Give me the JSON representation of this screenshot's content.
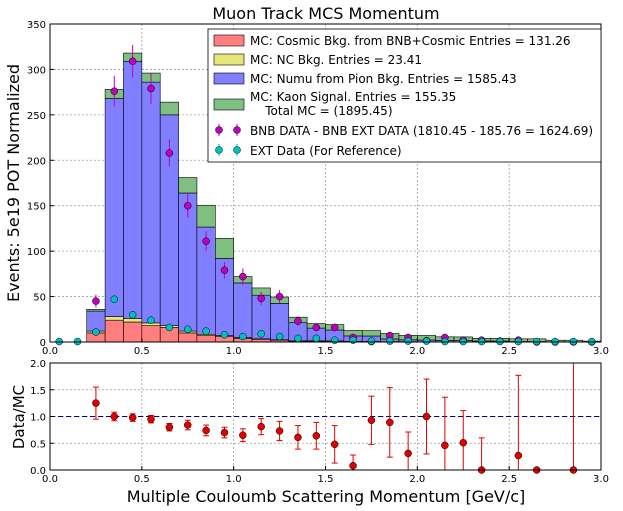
{
  "chart_data": [
    {
      "type": "bar",
      "stacked": true,
      "title": "Muon Track MCS Momentum",
      "ylabel": "Events: 5e19 POT Normalized",
      "xlim": [
        0,
        3
      ],
      "ylim": [
        0,
        350
      ],
      "xticks": [
        "0.0",
        "0.5",
        "1.0",
        "1.5",
        "2.0",
        "2.5",
        "3.0"
      ],
      "yticks": [
        "0",
        "50",
        "100",
        "150",
        "200",
        "250",
        "300",
        "350"
      ],
      "grid": true,
      "legend_position": "top-right",
      "bin_edges": [
        0,
        0.1,
        0.2,
        0.3,
        0.4,
        0.5,
        0.6,
        0.7,
        0.8,
        0.9,
        1.0,
        1.1,
        1.2,
        1.3,
        1.4,
        1.5,
        1.6,
        1.7,
        1.8,
        1.9,
        2.0,
        2.1,
        2.2,
        2.3,
        2.4,
        2.5,
        2.6,
        2.7,
        2.8,
        2.9,
        3.0
      ],
      "series": [
        {
          "name": "MC: Cosmic Bkg. from BNB+Cosmic Entries = 131.26",
          "color": "#ff7f7f",
          "values": [
            0,
            0,
            10,
            24,
            22,
            18,
            16,
            10,
            7,
            6,
            4,
            3,
            2,
            1,
            1,
            1,
            0.5,
            0.5,
            0.3,
            0.3,
            0.2,
            0.2,
            0.1,
            0.1,
            0.1,
            0,
            0,
            0,
            0,
            0
          ]
        },
        {
          "name": "MC: NC Bkg. Entries = 23.41",
          "color": "#e6e67a",
          "values": [
            0,
            0,
            2,
            4,
            4,
            3,
            2,
            2,
            1.5,
            1,
            1,
            0.5,
            0.5,
            0.3,
            0.3,
            0.2,
            0.2,
            0.1,
            0.1,
            0.1,
            0,
            0,
            0,
            0,
            0,
            0,
            0,
            0,
            0,
            0
          ]
        },
        {
          "name": "MC: Numu from Pion Bkg. Entries = 1585.43",
          "color": "#7f7fff",
          "values": [
            0,
            0,
            22,
            240,
            283,
            265,
            232,
            152,
            118,
            85,
            60,
            48,
            40,
            20,
            14,
            12,
            6,
            6,
            3,
            2,
            2,
            1.5,
            1.5,
            1,
            1,
            0.5,
            0.5,
            0,
            0,
            0
          ]
        },
        {
          "name": "MC: Kaon Signal. Entries = 155.35\n    Total MC = (1895.45)",
          "color": "#7fbf7f",
          "values": [
            0,
            0,
            2,
            10,
            9,
            10,
            14,
            17,
            24,
            22,
            7,
            8,
            7,
            6,
            5,
            6,
            6,
            6,
            6,
            5,
            5,
            4,
            4,
            3,
            3,
            3,
            3,
            2,
            2,
            1
          ]
        }
      ],
      "points": [
        {
          "name": "BNB DATA - BNB EXT DATA (1810.45 - 185.76 = 1624.69)",
          "color": "#bf00bf",
          "x": [
            0.25,
            0.35,
            0.45,
            0.55,
            0.65,
            0.75,
            0.85,
            0.95,
            1.05,
            1.15,
            1.25,
            1.35,
            1.45,
            1.55,
            1.65,
            1.75,
            1.85,
            1.95,
            2.05,
            2.15,
            2.25,
            2.35,
            2.45,
            2.55,
            2.65,
            2.75,
            2.85,
            2.95
          ],
          "y": [
            45,
            276,
            309,
            279,
            208,
            150,
            111,
            79,
            72,
            48,
            50,
            23,
            16,
            16,
            5,
            0.5,
            7,
            5,
            1.5,
            5,
            2,
            2,
            1,
            2,
            0,
            0,
            0,
            0
          ],
          "yerr": [
            7,
            17,
            18,
            17,
            15,
            13,
            11,
            9,
            9,
            7,
            7,
            5,
            4,
            4,
            3,
            1,
            3,
            3,
            2,
            3,
            2,
            2,
            1,
            2,
            0,
            0,
            0,
            0
          ]
        },
        {
          "name": "EXT Data (For Reference)",
          "color": "#00bfbf",
          "x": [
            0.05,
            0.15,
            0.25,
            0.35,
            0.45,
            0.55,
            0.65,
            0.75,
            0.85,
            0.95,
            1.05,
            1.15,
            1.25,
            1.35,
            1.45,
            1.55,
            1.65,
            1.75,
            1.85,
            1.95,
            2.05,
            2.15,
            2.25,
            2.35,
            2.45,
            2.55,
            2.65,
            2.75,
            2.85,
            2.95
          ],
          "y": [
            0.5,
            0.5,
            11,
            47,
            30,
            24,
            16,
            14,
            12,
            8,
            6,
            9,
            6,
            4,
            4,
            2,
            2,
            1,
            1,
            1,
            1,
            0.5,
            0.5,
            0.5,
            0.5,
            0.5,
            0.5,
            0.5,
            0.5,
            0.5
          ]
        }
      ]
    },
    {
      "type": "scatter",
      "ylabel": "Data/MC",
      "xlabel": "Multiple Couloumb Scattering Momentum [GeV/c]",
      "xlim": [
        0,
        3
      ],
      "ylim": [
        0,
        2
      ],
      "xticks": [
        "0.0",
        "0.5",
        "1.0",
        "1.5",
        "2.0",
        "2.5",
        "3.0"
      ],
      "yticks": [
        "0.0",
        "0.5",
        "1.0",
        "1.5",
        "2.0"
      ],
      "grid": true,
      "reference_line": 1.0,
      "points": {
        "color": "#e00000",
        "x": [
          0.25,
          0.35,
          0.45,
          0.55,
          0.65,
          0.75,
          0.85,
          0.95,
          1.05,
          1.15,
          1.25,
          1.35,
          1.45,
          1.55,
          1.65,
          1.75,
          1.85,
          1.95,
          2.05,
          2.15,
          2.25,
          2.35,
          2.55,
          2.65,
          2.85
        ],
        "y": [
          1.25,
          1.0,
          0.98,
          0.95,
          0.8,
          0.84,
          0.74,
          0.7,
          0.65,
          0.81,
          0.73,
          0.61,
          0.64,
          0.48,
          0.08,
          0.93,
          0.89,
          0.31,
          1.0,
          0.46,
          0.51,
          0.0,
          0.27,
          0.0,
          0.0
        ],
        "yerr": [
          0.3,
          0.08,
          0.07,
          0.07,
          0.07,
          0.09,
          0.1,
          0.1,
          0.12,
          0.15,
          0.18,
          0.22,
          0.25,
          0.35,
          0.2,
          0.45,
          0.65,
          0.4,
          0.7,
          0.9,
          0.6,
          0.6,
          1.5,
          0.0,
          2.5
        ]
      }
    }
  ]
}
